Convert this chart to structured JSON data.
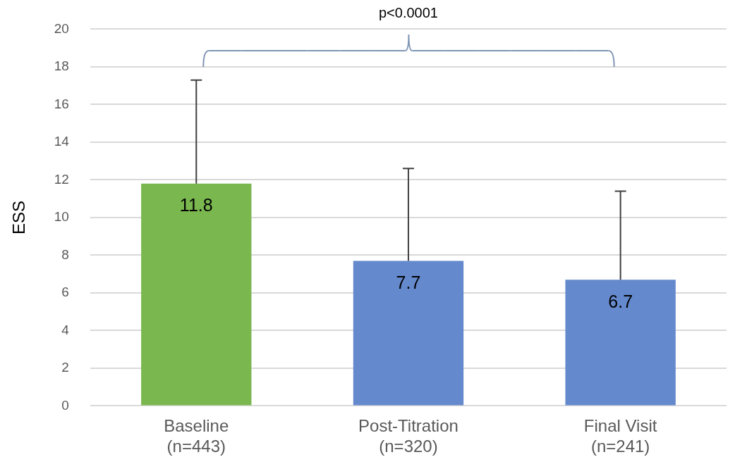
{
  "chart_data": {
    "type": "bar",
    "ylabel": "ESS",
    "categories": [
      "Baseline\n(n=443)",
      "Post-Titration\n(n=320)",
      "Final Visit\n(n=241)"
    ],
    "values": [
      11.8,
      7.7,
      6.7
    ],
    "colors": [
      "#7ab74f",
      "#6589cd",
      "#6589cd"
    ],
    "errors": [
      [
        11.8,
        17.3
      ],
      [
        7.7,
        12.6
      ],
      [
        6.7,
        11.4
      ]
    ],
    "ylim": [
      0,
      20
    ],
    "yticks": [
      0,
      2,
      4,
      6,
      8,
      10,
      12,
      14,
      16,
      18,
      20
    ],
    "grid": "y",
    "legend": false,
    "data_labels": true,
    "annotations": [
      "p<0.0001"
    ]
  }
}
